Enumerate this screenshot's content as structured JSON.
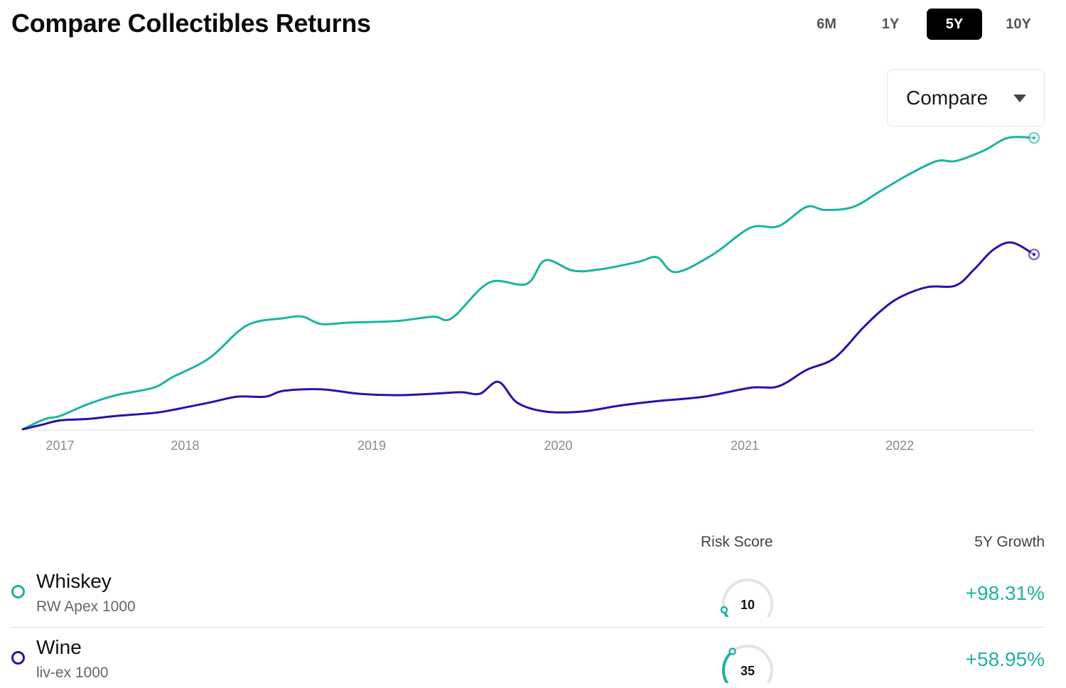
{
  "header": {
    "title": "Compare Collectibles Returns",
    "periods": [
      "6M",
      "1Y",
      "5Y",
      "10Y"
    ],
    "active_period": "5Y"
  },
  "compare_dropdown": {
    "label": "Compare"
  },
  "colors": {
    "whiskey": "#1db3a2",
    "wine": "#2415a8",
    "axis": "#e8e8e8",
    "tick": "#8a8a8a",
    "gauge_track": "#e4e4e4"
  },
  "chart_data": {
    "type": "line",
    "x_tick_labels": [
      "2017",
      "2018",
      "2019",
      "2020",
      "2021",
      "2022"
    ],
    "y_unit": "cumulative growth (%)",
    "series": [
      {
        "name": "Whiskey",
        "color": "#1db3a2",
        "x": [
          2016.8,
          2016.92,
          2017.0,
          2017.15,
          2017.3,
          2017.5,
          2017.6,
          2017.8,
          2018.0,
          2018.2,
          2018.3,
          2018.4,
          2018.55,
          2018.8,
          2019.0,
          2019.1,
          2019.3,
          2019.5,
          2019.6,
          2019.75,
          2019.9,
          2020.1,
          2020.2,
          2020.3,
          2020.5,
          2020.7,
          2020.85,
          2021.0,
          2021.1,
          2021.25,
          2021.4,
          2021.55,
          2021.7,
          2021.8,
          2021.95,
          2022.08,
          2022.22
        ],
        "y": [
          0,
          3.5,
          4.5,
          8.5,
          11.5,
          14,
          17.5,
          24,
          35,
          37.5,
          38,
          35.5,
          36,
          36.5,
          38,
          37.5,
          49.5,
          49,
          57,
          53.5,
          54,
          56.5,
          58,
          53,
          59,
          68,
          68.5,
          75,
          74,
          75,
          80.5,
          86,
          90.5,
          90.5,
          94,
          98.31,
          98.31
        ]
      },
      {
        "name": "Wine",
        "color": "#2415a8",
        "x": [
          2016.8,
          2016.9,
          2017.0,
          2017.15,
          2017.3,
          2017.5,
          2017.6,
          2017.8,
          2017.95,
          2018.1,
          2018.2,
          2018.4,
          2018.6,
          2018.8,
          2019.0,
          2019.15,
          2019.25,
          2019.35,
          2019.45,
          2019.6,
          2019.8,
          2020.0,
          2020.2,
          2020.45,
          2020.7,
          2020.85,
          2021.0,
          2021.15,
          2021.3,
          2021.4,
          2021.5,
          2021.65,
          2021.8,
          2021.9,
          2022.0,
          2022.1,
          2022.22
        ],
        "y": [
          0,
          1.5,
          3,
          3.5,
          4.5,
          5.5,
          6.5,
          9,
          11,
          11,
          13,
          13.5,
          12,
          11.5,
          12,
          12.5,
          12,
          16,
          9,
          6,
          6,
          8,
          9.5,
          11,
          14,
          14.5,
          20,
          24,
          34,
          40,
          44.5,
          48,
          48.5,
          54,
          60.5,
          63,
          59
        ]
      }
    ],
    "end_values": [
      {
        "name": "Whiskey",
        "growth": 98.31
      },
      {
        "name": "Wine",
        "growth": 58.95
      }
    ]
  },
  "table": {
    "risk_header": "Risk Score",
    "growth_header": "5Y Growth",
    "rows": [
      {
        "name": "Whiskey",
        "index": "RW Apex 1000",
        "risk": "10",
        "risk_fraction": 0.1,
        "growth": "+98.31%",
        "color": "#1db3a2"
      },
      {
        "name": "Wine",
        "index": "liv-ex 1000",
        "risk": "35",
        "risk_fraction": 0.35,
        "growth": "+58.95%",
        "color": "#2415a8"
      }
    ]
  }
}
